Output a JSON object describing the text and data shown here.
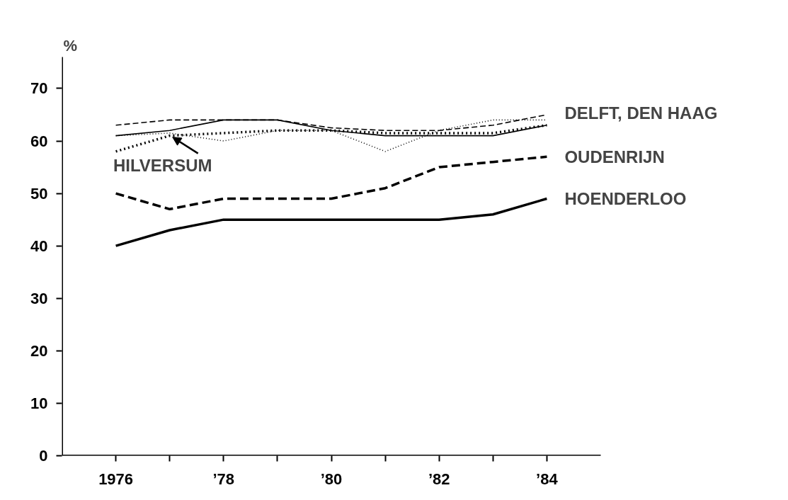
{
  "chart_data": {
    "type": "line",
    "ylabel": "%",
    "x": [
      1976,
      1977,
      1978,
      1979,
      1980,
      1981,
      1982,
      1983,
      1984
    ],
    "series": [
      {
        "name": "HOENDERLOO",
        "color": "#000000",
        "line_style": "solid",
        "values": [
          40,
          43,
          45,
          45,
          45,
          45,
          45,
          46,
          49
        ]
      },
      {
        "name": "OUDENRIJN",
        "color": "#000000",
        "line_style": "dashed",
        "values": [
          50,
          47,
          49,
          49,
          49,
          51,
          55,
          56,
          57
        ]
      },
      {
        "color": "#000000",
        "line_style": "dotted",
        "values": [
          58,
          61,
          61.5,
          62,
          62,
          61.5,
          61.5,
          61.5,
          63
        ]
      },
      {
        "color": "#000000",
        "line_style": "solid",
        "values": [
          61,
          62,
          64,
          64,
          62,
          61,
          61,
          61,
          63
        ]
      },
      {
        "color": "#000000",
        "line_style": "dashed",
        "values": [
          63,
          64,
          64,
          64,
          62.5,
          62,
          62,
          63,
          65
        ]
      },
      {
        "color": "#000000",
        "line_style": "dotted",
        "values": [
          61,
          61.5,
          60,
          62,
          62,
          58,
          62,
          64,
          64
        ]
      }
    ],
    "annotations": [
      {
        "text": "DELFT, DEN HAAG",
        "x": 1984,
        "y": 65
      },
      {
        "text": "HILVERSUM",
        "x": 1977,
        "y": 61
      }
    ],
    "xlim": [
      1975,
      1985
    ],
    "ylim": [
      0,
      76
    ],
    "xticks": [
      1976,
      {
        "value": 1977,
        "label": null
      },
      {
        "value": 1978,
        "label": "’78"
      },
      {
        "value": 1979,
        "label": null
      },
      {
        "value": 1980,
        "label": "’80"
      },
      {
        "value": 1981,
        "label": null
      },
      {
        "value": 1982,
        "label": "’82"
      },
      {
        "value": 1983,
        "label": null
      },
      {
        "value": 1984,
        "label": "’84"
      }
    ],
    "yticks": [
      0,
      10,
      20,
      30,
      40,
      50,
      60,
      70
    ],
    "grid": false,
    "legend": false
  }
}
